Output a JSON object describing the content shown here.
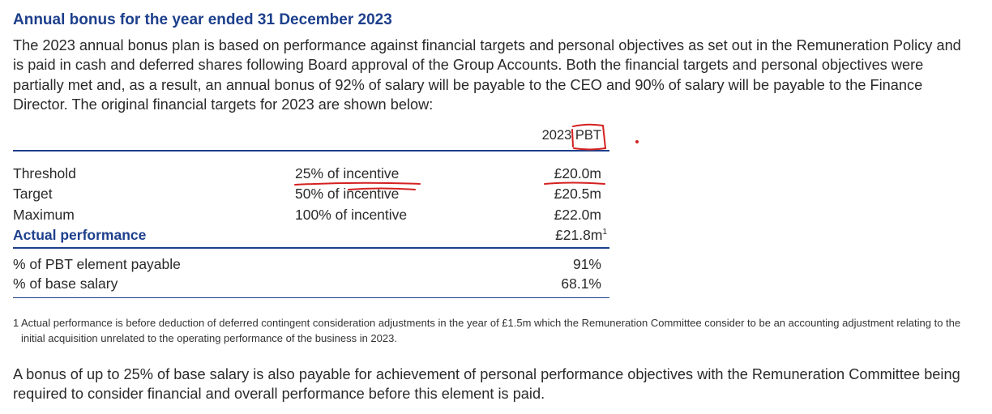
{
  "heading": "Annual bonus for the year ended 31 December 2023",
  "intro": "The 2023 annual bonus plan is based on performance against financial targets and personal objectives as set out in the Remuneration Policy and is paid in cash and deferred shares following Board approval of the Group Accounts. Both the financial targets and personal objectives were partially met and, as a result, an annual bonus of 92% of salary will be payable to the CEO and 90% of salary will be payable to the Finance Director. The original financial targets for 2023 are shown below:",
  "table": {
    "column_header": "2023 PBT",
    "rows": [
      {
        "label": "Threshold",
        "incentive": "25% of incentive",
        "value": "£20.0m"
      },
      {
        "label": "Target",
        "incentive": "50% of incentive",
        "value": "£20.5m"
      },
      {
        "label": "Maximum",
        "incentive": "100% of incentive",
        "value": "£22.0m"
      }
    ],
    "actual": {
      "label": "Actual performance",
      "value": "£21.8m",
      "footnote_ref": "1"
    },
    "summary": [
      {
        "label": "% of PBT element payable",
        "value": "91%"
      },
      {
        "label": "% of base salary",
        "value": "68.1%"
      }
    ]
  },
  "footnote": {
    "number": "1",
    "text": "Actual performance is before deduction of deferred contingent consideration adjustments in the year of £1.5m which the Remuneration Committee consider to be an accounting adjustment relating to the initial acquisition unrelated to the operating performance of the business in 2023."
  },
  "closing": "A bonus of up to 25% of base salary is also payable for achievement of personal performance objectives with the Remuneration Committee being required to consider financial and overall performance before this element is paid.",
  "colors": {
    "accent": "#1d3f8c",
    "annotation": "#d42020"
  }
}
